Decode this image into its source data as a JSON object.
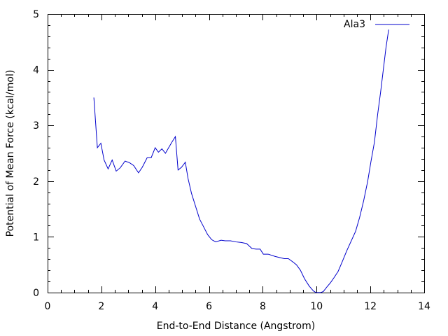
{
  "chart_data": {
    "type": "line",
    "xlabel": "End-to-End Distance (Angstrom)",
    "ylabel": "Potential of Mean Force (kcal/mol)",
    "xlim": [
      0,
      14
    ],
    "ylim": [
      0,
      5
    ],
    "xticks": [
      "0",
      "2",
      "4",
      "6",
      "8",
      "10",
      "12",
      "14"
    ],
    "yticks": [
      "0",
      "1",
      "2",
      "3",
      "4",
      "5"
    ],
    "grid": false,
    "legend_position": "top-right",
    "series": [
      {
        "name": "Ala3",
        "color": "#0000cc",
        "x": [
          1.72,
          1.85,
          1.98,
          2.1,
          2.25,
          2.4,
          2.55,
          2.7,
          2.88,
          3.05,
          3.2,
          3.38,
          3.52,
          3.7,
          3.85,
          4.0,
          4.12,
          4.25,
          4.38,
          4.5,
          4.62,
          4.75,
          4.85,
          4.98,
          5.12,
          5.22,
          5.35,
          5.5,
          5.65,
          5.8,
          5.95,
          6.1,
          6.25,
          6.45,
          6.6,
          6.8,
          7.0,
          7.2,
          7.4,
          7.6,
          7.75,
          7.9,
          8.02,
          8.2,
          8.45,
          8.62,
          8.8,
          8.95,
          9.12,
          9.25,
          9.4,
          9.55,
          9.72,
          9.88,
          9.98,
          10.05,
          10.15,
          10.25,
          10.38,
          10.52,
          10.65,
          10.8,
          10.95,
          11.12,
          11.28,
          11.45,
          11.6,
          11.75,
          11.9,
          12.02,
          12.15,
          12.27,
          12.38,
          12.48,
          12.58,
          12.68
        ],
        "y": [
          3.5,
          2.6,
          2.68,
          2.38,
          2.22,
          2.38,
          2.18,
          2.24,
          2.36,
          2.33,
          2.28,
          2.15,
          2.25,
          2.42,
          2.42,
          2.6,
          2.52,
          2.58,
          2.5,
          2.6,
          2.7,
          2.8,
          2.2,
          2.25,
          2.34,
          2.05,
          1.78,
          1.55,
          1.32,
          1.18,
          1.04,
          0.95,
          0.91,
          0.94,
          0.93,
          0.93,
          0.91,
          0.9,
          0.88,
          0.79,
          0.78,
          0.78,
          0.69,
          0.69,
          0.65,
          0.63,
          0.61,
          0.61,
          0.55,
          0.5,
          0.4,
          0.25,
          0.12,
          0.03,
          0.0,
          0.0,
          0.0,
          0.02,
          0.1,
          0.18,
          0.27,
          0.38,
          0.55,
          0.75,
          0.92,
          1.1,
          1.35,
          1.65,
          2.0,
          2.35,
          2.7,
          3.2,
          3.6,
          4.0,
          4.4,
          4.72
        ]
      }
    ]
  }
}
